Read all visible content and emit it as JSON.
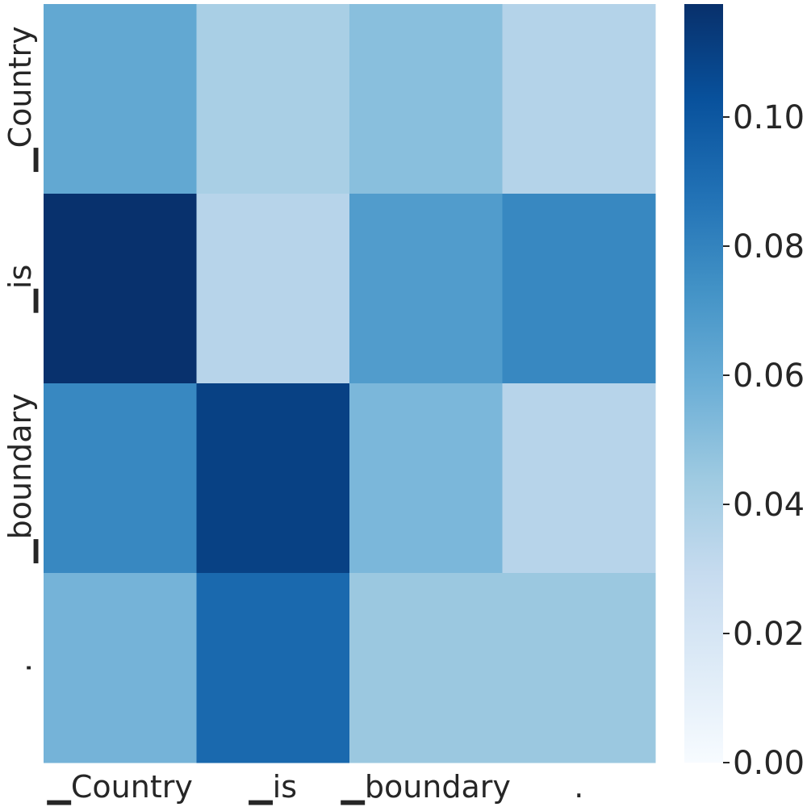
{
  "chart_data": {
    "type": "heatmap",
    "title": "",
    "xlabel": "",
    "ylabel": "",
    "x_categories": [
      "▁Country",
      "▁is",
      "▁boundary",
      "."
    ],
    "y_categories": [
      "▁Country",
      "▁is",
      "▁boundary",
      "."
    ],
    "values": [
      [
        0.062,
        0.04,
        0.05,
        0.036
      ],
      [
        0.117,
        0.035,
        0.068,
        0.078
      ],
      [
        0.078,
        0.11,
        0.054,
        0.035
      ],
      [
        0.056,
        0.092,
        0.045,
        0.045
      ]
    ],
    "colorbar": {
      "min": 0.0,
      "max": 0.1175,
      "ticks": [
        0.0,
        0.02,
        0.04,
        0.06,
        0.08,
        0.1
      ],
      "tick_labels": [
        "0.00",
        "0.02",
        "0.04",
        "0.06",
        "0.08",
        "0.10"
      ],
      "colormap": "Blues"
    },
    "grid": false,
    "legend": "colorbar-right"
  }
}
